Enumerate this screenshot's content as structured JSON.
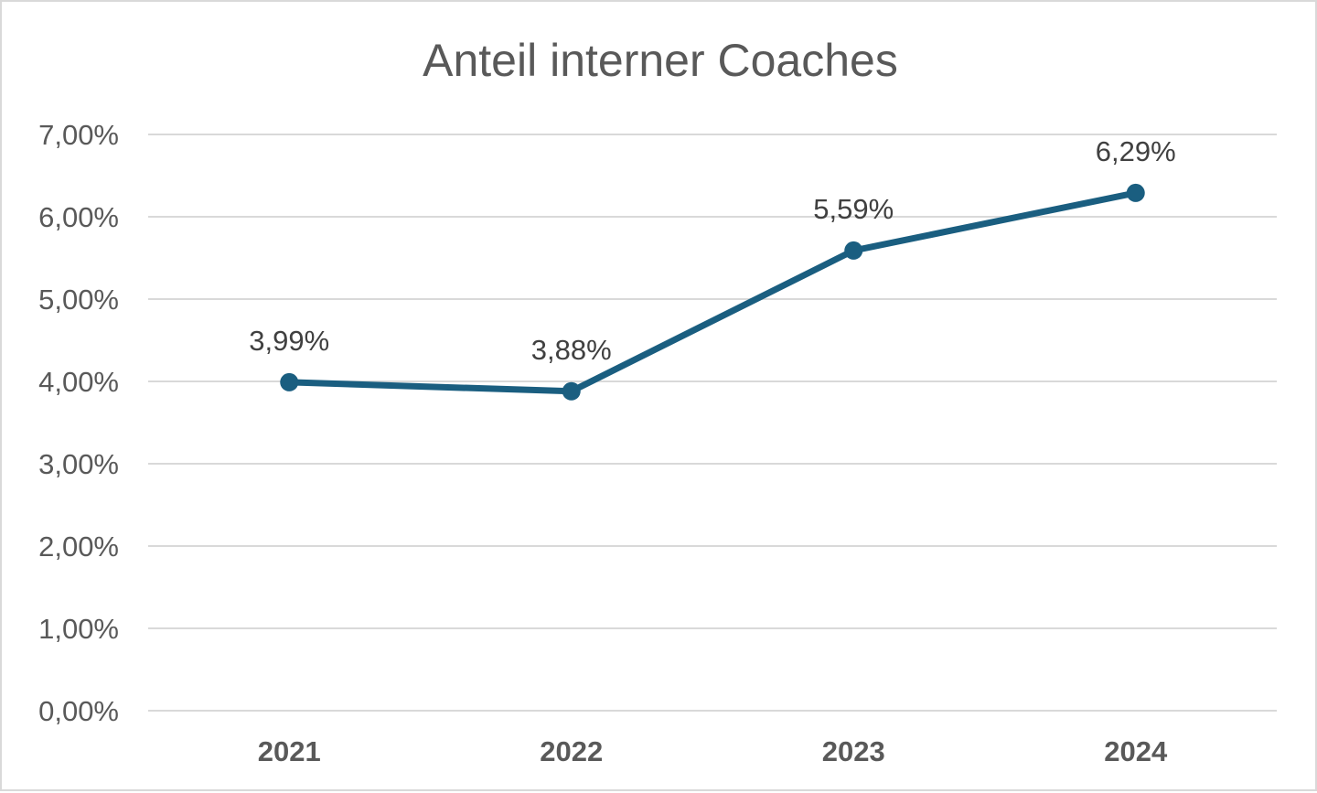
{
  "chart_data": {
    "type": "line",
    "title": "Anteil interner Coaches",
    "categories": [
      "2021",
      "2022",
      "2023",
      "2024"
    ],
    "values": [
      3.99,
      3.88,
      5.59,
      6.29
    ],
    "data_labels": [
      "3,99%",
      "3,88%",
      "5,59%",
      "6,29%"
    ],
    "ylim": [
      0,
      7
    ],
    "y_ticks": [
      {
        "value": 0,
        "label": "0,00%"
      },
      {
        "value": 1,
        "label": "1,00%"
      },
      {
        "value": 2,
        "label": "2,00%"
      },
      {
        "value": 3,
        "label": "3,00%"
      },
      {
        "value": 4,
        "label": "4,00%"
      },
      {
        "value": 5,
        "label": "5,00%"
      },
      {
        "value": 6,
        "label": "6,00%"
      },
      {
        "value": 7,
        "label": "7,00%"
      }
    ],
    "xlabel": "",
    "ylabel": "",
    "grid": true,
    "legend": "none",
    "colors": {
      "line": "#1a5e80",
      "grid": "#d9d9d9",
      "text": "#595959"
    }
  }
}
